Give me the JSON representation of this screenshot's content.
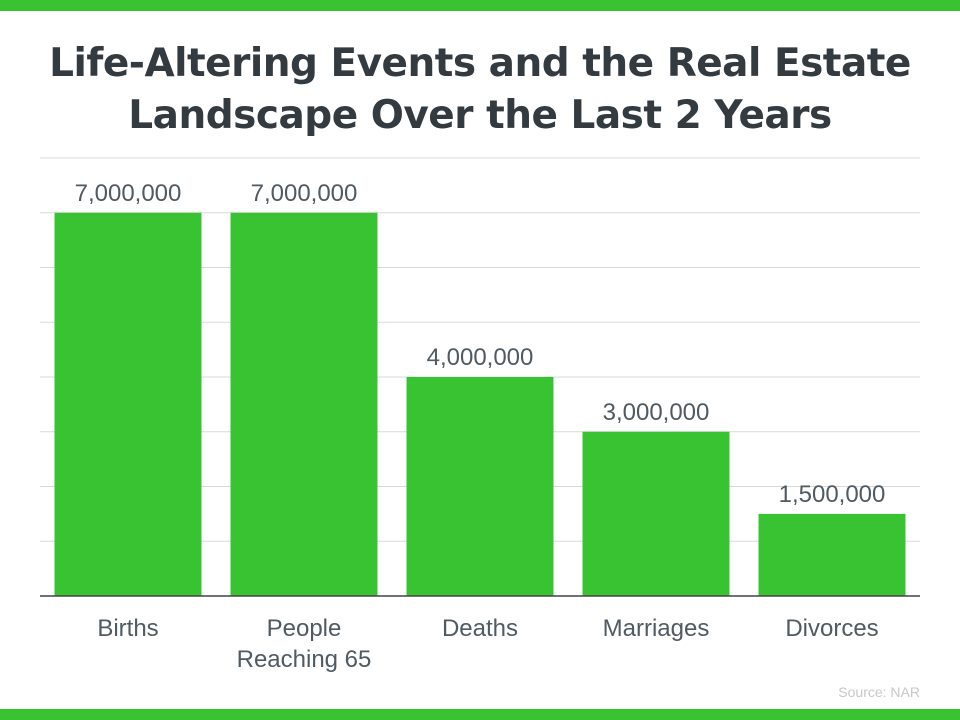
{
  "colors": {
    "accent": "#39c232",
    "bar": "#39c232",
    "title": "#333a40",
    "label": "#505a62",
    "grid": "#d9d9d9",
    "baseline": "#444444",
    "source": "#c8c8c8"
  },
  "chart_data": {
    "type": "bar",
    "title": "Life-Altering Events and the Real Estate Landscape Over the Last 2 Years",
    "categories": [
      "Births",
      "People Reaching 65",
      "Deaths",
      "Marriages",
      "Divorces"
    ],
    "category_lines": [
      [
        "Births"
      ],
      [
        "People",
        "Reaching 65"
      ],
      [
        "Deaths"
      ],
      [
        "Marriages"
      ],
      [
        "Divorces"
      ]
    ],
    "values": [
      7000000,
      7000000,
      4000000,
      3000000,
      1500000
    ],
    "value_labels": [
      "7,000,000",
      "7,000,000",
      "4,000,000",
      "3,000,000",
      "1,500,000"
    ],
    "xlabel": "",
    "ylabel": "",
    "ylim": [
      0,
      8000000
    ],
    "grid": true,
    "grid_step": 1000000,
    "legend": "none"
  },
  "source": "Source: NAR"
}
